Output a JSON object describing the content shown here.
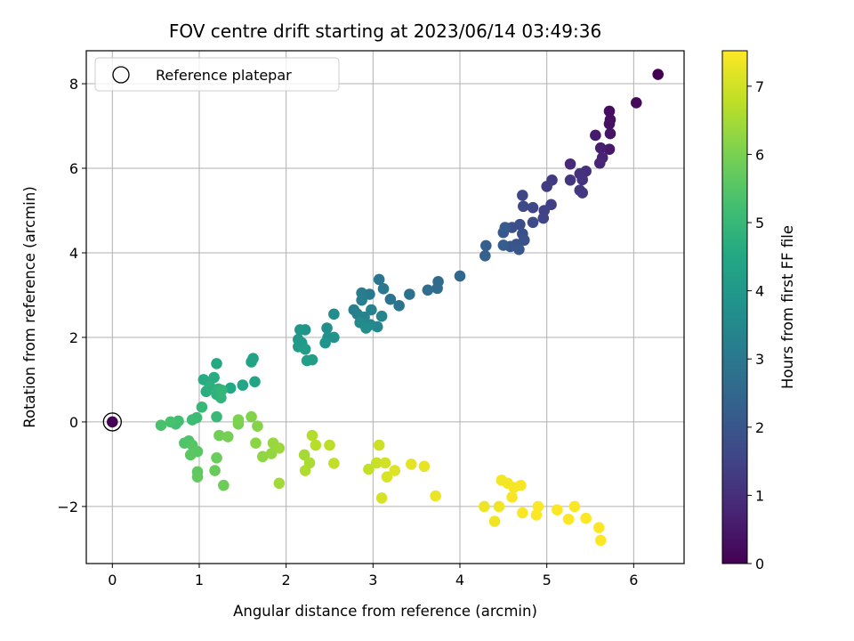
{
  "chart_data": {
    "type": "scatter",
    "title": "FOV centre drift starting at 2023/06/14 03:49:36",
    "xlabel": "Angular distance from reference (arcmin)",
    "ylabel": "Rotation from reference (arcmin)",
    "xlim": [
      -0.3,
      6.58
    ],
    "ylim": [
      -3.35,
      8.78
    ],
    "xticks": [
      0,
      1,
      2,
      3,
      4,
      5,
      6
    ],
    "yticks": [
      -2,
      0,
      2,
      4,
      6,
      8
    ],
    "xtick_labels": [
      "0",
      "1",
      "2",
      "3",
      "4",
      "5",
      "6"
    ],
    "ytick_labels": [
      "−2",
      "0",
      "2",
      "4",
      "6",
      "8"
    ],
    "grid": true,
    "legend": {
      "placement": "upper-left",
      "entries": [
        "Reference platepar"
      ]
    },
    "reference_point": {
      "x": 0,
      "y": 0,
      "marker": "open-circle"
    },
    "colormap": "viridis",
    "colorbar": {
      "label": "Hours from first FF file",
      "range": [
        0,
        7.52
      ],
      "ticks": [
        0,
        1,
        2,
        3,
        4,
        5,
        6,
        7
      ],
      "tick_labels": [
        "0",
        "1",
        "2",
        "3",
        "4",
        "5",
        "6",
        "7"
      ]
    },
    "points": [
      [
        6.28,
        8.22,
        0.0
      ],
      [
        6.03,
        7.55,
        0.15
      ],
      [
        5.72,
        7.35,
        0.25
      ],
      [
        5.73,
        7.15,
        0.3
      ],
      [
        5.72,
        7.05,
        0.35
      ],
      [
        5.73,
        6.82,
        0.4
      ],
      [
        5.72,
        6.45,
        0.5
      ],
      [
        5.56,
        6.78,
        0.55
      ],
      [
        5.62,
        6.48,
        0.6
      ],
      [
        5.64,
        6.25,
        0.7
      ],
      [
        5.61,
        6.12,
        0.8
      ],
      [
        5.27,
        6.1,
        0.9
      ],
      [
        5.45,
        5.93,
        1.0
      ],
      [
        5.38,
        5.87,
        1.05
      ],
      [
        5.41,
        5.73,
        1.1
      ],
      [
        5.27,
        5.72,
        1.15
      ],
      [
        5.38,
        5.48,
        1.2
      ],
      [
        5.41,
        5.42,
        1.25
      ],
      [
        5.06,
        5.72,
        1.3
      ],
      [
        5.0,
        5.57,
        1.35
      ],
      [
        5.05,
        5.14,
        1.4
      ],
      [
        4.97,
        5.0,
        1.45
      ],
      [
        4.96,
        4.82,
        1.5
      ],
      [
        4.84,
        5.07,
        1.55
      ],
      [
        4.72,
        5.36,
        1.6
      ],
      [
        4.73,
        5.1,
        1.65
      ],
      [
        4.84,
        4.72,
        1.7
      ],
      [
        4.69,
        4.67,
        1.75
      ],
      [
        4.6,
        4.6,
        1.8
      ],
      [
        4.72,
        4.45,
        1.85
      ],
      [
        4.74,
        4.3,
        1.9
      ],
      [
        4.65,
        4.2,
        1.95
      ],
      [
        4.58,
        4.15,
        2.0
      ],
      [
        4.68,
        4.08,
        2.05
      ],
      [
        4.5,
        4.48,
        2.1
      ],
      [
        4.52,
        4.6,
        2.15
      ],
      [
        4.5,
        4.18,
        2.2
      ],
      [
        4.3,
        4.17,
        2.3
      ],
      [
        4.29,
        3.93,
        2.35
      ],
      [
        4.0,
        3.45,
        2.5
      ],
      [
        3.75,
        3.32,
        2.6
      ],
      [
        3.74,
        3.16,
        2.65
      ],
      [
        3.63,
        3.12,
        2.7
      ],
      [
        3.42,
        3.02,
        2.8
      ],
      [
        3.3,
        2.75,
        2.85
      ],
      [
        3.2,
        2.9,
        2.9
      ],
      [
        3.07,
        3.37,
        2.95
      ],
      [
        3.12,
        3.15,
        3.0
      ],
      [
        2.96,
        3.02,
        3.05
      ],
      [
        2.87,
        3.05,
        3.1
      ],
      [
        2.87,
        2.88,
        3.15
      ],
      [
        2.78,
        2.65,
        3.2
      ],
      [
        2.82,
        2.55,
        3.25
      ],
      [
        2.9,
        2.48,
        3.3
      ],
      [
        2.98,
        2.65,
        3.35
      ],
      [
        3.1,
        2.5,
        3.4
      ],
      [
        3.05,
        2.25,
        3.45
      ],
      [
        2.97,
        2.3,
        3.5
      ],
      [
        2.85,
        2.35,
        3.55
      ],
      [
        2.92,
        2.22,
        3.6
      ],
      [
        2.55,
        2.55,
        3.65
      ],
      [
        2.47,
        2.22,
        3.7
      ],
      [
        2.48,
        2.0,
        3.75
      ],
      [
        2.55,
        2.0,
        3.8
      ],
      [
        2.45,
        1.87,
        3.85
      ],
      [
        2.22,
        2.18,
        3.9
      ],
      [
        2.16,
        2.18,
        3.95
      ],
      [
        2.14,
        1.95,
        4.0
      ],
      [
        2.18,
        1.87,
        4.05
      ],
      [
        2.14,
        1.78,
        4.1
      ],
      [
        2.22,
        1.72,
        4.15
      ],
      [
        2.3,
        1.47,
        4.2
      ],
      [
        2.24,
        1.45,
        4.25
      ],
      [
        1.62,
        1.5,
        4.3
      ],
      [
        1.6,
        1.42,
        4.35
      ],
      [
        1.64,
        0.95,
        4.4
      ],
      [
        1.5,
        0.87,
        4.45
      ],
      [
        1.36,
        0.8,
        4.5
      ],
      [
        1.2,
        1.38,
        4.55
      ],
      [
        1.05,
        1.0,
        4.6
      ],
      [
        1.17,
        1.05,
        4.65
      ],
      [
        1.08,
        0.72,
        4.7
      ],
      [
        1.12,
        0.85,
        4.75
      ],
      [
        1.2,
        0.65,
        4.8
      ],
      [
        1.22,
        0.78,
        4.85
      ],
      [
        1.25,
        0.57,
        4.9
      ],
      [
        1.26,
        0.75,
        4.95
      ],
      [
        1.03,
        0.35,
        5.0
      ],
      [
        1.2,
        0.12,
        5.05
      ],
      [
        0.97,
        0.1,
        5.1
      ],
      [
        0.92,
        0.05,
        5.15
      ],
      [
        0.76,
        0.02,
        5.2
      ],
      [
        0.73,
        -0.05,
        5.25
      ],
      [
        0.67,
        0.0,
        5.3
      ],
      [
        0.56,
        -0.08,
        5.35
      ],
      [
        0.88,
        -0.45,
        5.4
      ],
      [
        0.83,
        -0.5,
        5.45
      ],
      [
        0.92,
        -0.55,
        5.5
      ],
      [
        0.98,
        -0.7,
        5.55
      ],
      [
        0.9,
        -0.78,
        5.6
      ],
      [
        0.98,
        -1.18,
        5.65
      ],
      [
        0.98,
        -1.3,
        5.7
      ],
      [
        1.18,
        -1.15,
        5.75
      ],
      [
        1.2,
        -0.85,
        5.8
      ],
      [
        1.28,
        -1.5,
        5.85
      ],
      [
        1.23,
        -0.32,
        5.9
      ],
      [
        1.33,
        -0.35,
        5.95
      ],
      [
        1.45,
        -0.05,
        6.0
      ],
      [
        1.45,
        0.05,
        6.05
      ],
      [
        1.6,
        0.12,
        6.1
      ],
      [
        1.67,
        -0.1,
        6.15
      ],
      [
        1.65,
        -0.5,
        6.2
      ],
      [
        1.73,
        -0.82,
        6.25
      ],
      [
        1.83,
        -0.75,
        6.3
      ],
      [
        1.85,
        -0.5,
        6.35
      ],
      [
        1.92,
        -0.62,
        6.4
      ],
      [
        1.92,
        -1.45,
        6.45
      ],
      [
        2.21,
        -0.78,
        6.5
      ],
      [
        2.27,
        -0.97,
        6.55
      ],
      [
        2.22,
        -1.15,
        6.6
      ],
      [
        2.3,
        -0.32,
        6.65
      ],
      [
        2.34,
        -0.55,
        6.7
      ],
      [
        2.5,
        -0.55,
        6.75
      ],
      [
        2.55,
        -0.98,
        6.8
      ],
      [
        2.95,
        -1.12,
        6.85
      ],
      [
        3.04,
        -0.97,
        6.9
      ],
      [
        3.07,
        -0.55,
        6.95
      ],
      [
        3.14,
        -0.97,
        7.0
      ],
      [
        3.1,
        -1.8,
        7.05
      ],
      [
        3.16,
        -1.3,
        7.1
      ],
      [
        3.25,
        -1.15,
        7.15
      ],
      [
        3.44,
        -1.0,
        7.2
      ],
      [
        3.59,
        -1.05,
        7.25
      ],
      [
        3.72,
        -1.75,
        7.3
      ],
      [
        4.28,
        -2.0,
        7.33
      ],
      [
        4.4,
        -2.35,
        7.36
      ],
      [
        4.45,
        -2.0,
        7.38
      ],
      [
        4.48,
        -1.38,
        7.4
      ],
      [
        4.55,
        -1.45,
        7.42
      ],
      [
        4.62,
        -1.55,
        7.44
      ],
      [
        4.7,
        -1.5,
        7.45
      ],
      [
        4.6,
        -1.78,
        7.46
      ],
      [
        4.72,
        -2.15,
        7.47
      ],
      [
        4.9,
        -2.0,
        7.48
      ],
      [
        4.88,
        -2.2,
        7.49
      ],
      [
        5.12,
        -2.08,
        7.5
      ],
      [
        5.25,
        -2.3,
        7.5
      ],
      [
        5.32,
        -2.0,
        7.51
      ],
      [
        5.45,
        -2.28,
        7.51
      ],
      [
        5.6,
        -2.5,
        7.52
      ],
      [
        5.62,
        -2.8,
        7.52
      ]
    ]
  }
}
